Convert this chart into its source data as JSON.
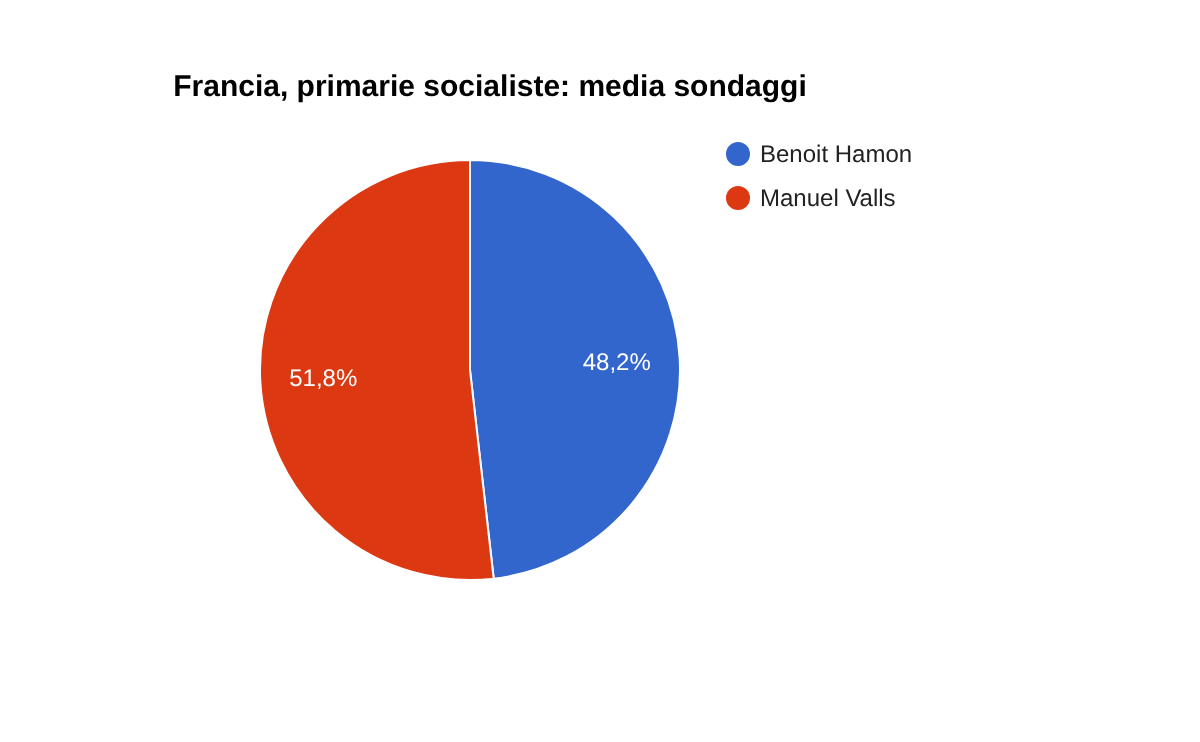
{
  "chart_data": {
    "type": "pie",
    "title": "Francia, primarie socialiste: media sondaggi",
    "categories": [
      "Benoit Hamon",
      "Manuel Valls"
    ],
    "values": [
      48.2,
      51.8
    ],
    "colors": [
      "#3366cc",
      "#dc3912"
    ],
    "value_labels": [
      "48,2%",
      "51,8%"
    ],
    "legend": "top right"
  }
}
